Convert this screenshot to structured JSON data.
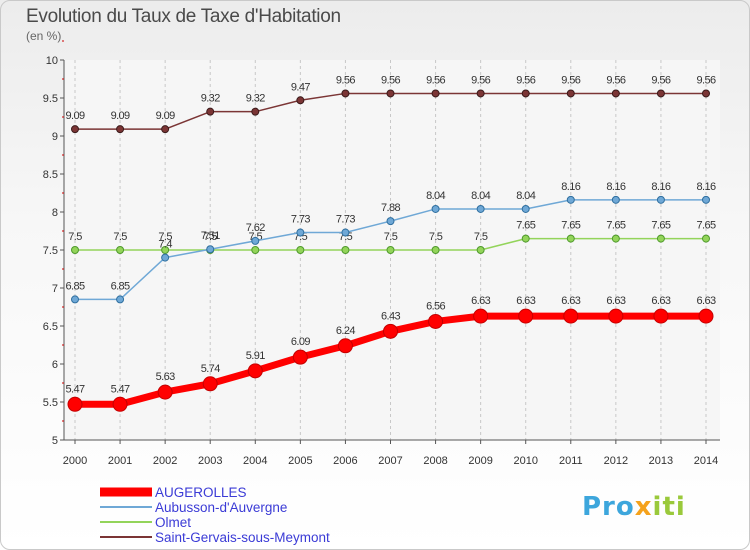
{
  "title": "Evolution du Taux de Taxe d'Habitation",
  "subtitle": "(en %)",
  "logo": {
    "part1": "Pro",
    "part2": "x",
    "part3": "iti"
  },
  "colors": {
    "AUGEROLLES": "#ff0000",
    "Aubusson-d'Auvergne": "#6fa8d6",
    "Olmet": "#93d45a",
    "Saint-Gervais-sous-Meymont": "#7b3535"
  },
  "chart_data": {
    "type": "line",
    "title": "Evolution du Taux de Taxe d'Habitation",
    "subtitle": "(en %)",
    "xlabel": "",
    "ylabel": "",
    "ylim": [
      5,
      10
    ],
    "yticks": [
      "5",
      "5.5",
      "6",
      "6.5",
      "7",
      "7.5",
      "8",
      "8.5",
      "9",
      "9.5",
      "10"
    ],
    "grid": "vertical dashed",
    "legend_position": "bottom-left",
    "x": [
      "2000",
      "2001",
      "2002",
      "2003",
      "2004",
      "2005",
      "2006",
      "2007",
      "2008",
      "2009",
      "2010",
      "2011",
      "2012",
      "2013",
      "2014"
    ],
    "series": [
      {
        "name": "AUGEROLLES",
        "values": [
          5.47,
          5.47,
          5.63,
          5.74,
          5.91,
          6.09,
          6.24,
          6.43,
          6.56,
          6.63,
          6.63,
          6.63,
          6.63,
          6.63,
          6.63
        ],
        "labels": [
          "5.47",
          "5.47",
          "5.63",
          "5.74",
          "5.91",
          "6.09",
          "6.24",
          "6.43",
          "6.56",
          "6.63",
          "6.63",
          "6.63",
          "6.63",
          "6.63",
          "6.63"
        ]
      },
      {
        "name": "Aubusson-d'Auvergne",
        "values": [
          6.85,
          6.85,
          7.4,
          7.51,
          7.62,
          7.73,
          7.73,
          7.88,
          8.04,
          8.04,
          8.04,
          8.16,
          8.16,
          8.16,
          8.16
        ],
        "labels": [
          "6.85",
          "6.85",
          "7.4",
          "7.51",
          "7.62",
          "7.73",
          "7.73",
          "7.88",
          "8.04",
          "8.04",
          "8.04",
          "8.16",
          "8.16",
          "8.16",
          "8.16"
        ]
      },
      {
        "name": "Olmet",
        "values": [
          7.5,
          7.5,
          7.5,
          7.5,
          7.5,
          7.5,
          7.5,
          7.5,
          7.5,
          7.5,
          7.65,
          7.65,
          7.65,
          7.65,
          7.65
        ],
        "labels": [
          "7.5",
          "7.5",
          "7.5",
          "7.5",
          "7.5",
          "7.5",
          "7.5",
          "7.5",
          "7.5",
          "7.5",
          "7.65",
          "7.65",
          "7.65",
          "7.65",
          "7.65"
        ]
      },
      {
        "name": "Saint-Gervais-sous-Meymont",
        "values": [
          9.09,
          9.09,
          9.09,
          9.32,
          9.32,
          9.47,
          9.56,
          9.56,
          9.56,
          9.56,
          9.56,
          9.56,
          9.56,
          9.56,
          9.56
        ],
        "labels": [
          "9.09",
          "9.09",
          "9.09",
          "9.32",
          "9.32",
          "9.47",
          "9.56",
          "9.56",
          "9.56",
          "9.56",
          "9.56",
          "9.56",
          "9.56",
          "9.56",
          "9.56"
        ]
      }
    ]
  }
}
